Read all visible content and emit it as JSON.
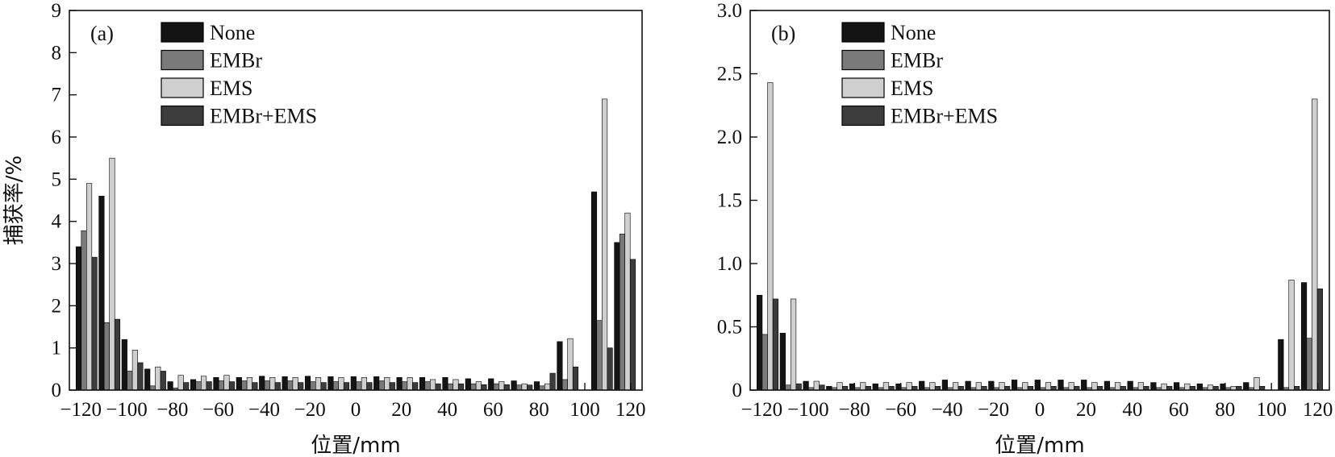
{
  "colors": {
    "None": "#141414",
    "EMBr": "#7a7a7a",
    "EMS": "#cfcfcf",
    "EMBr+EMS": "#3c3c3c",
    "axis": "#111111"
  },
  "chart_data": [
    {
      "type": "bar",
      "panel_label": "(a)",
      "xlabel": "位置/mm",
      "ylabel": "捕获率/%",
      "ylim": [
        0,
        9
      ],
      "yticks": [
        "0",
        "1",
        "2",
        "3",
        "4",
        "5",
        "6",
        "7",
        "8",
        "9"
      ],
      "xlim": [
        -125,
        125
      ],
      "xticks": [
        "−120",
        "−100",
        "−80",
        "−60",
        "−40",
        "−20",
        "0",
        "20",
        "40",
        "60",
        "80",
        "100",
        "120"
      ],
      "legend_position": "top-left",
      "x": [
        -117.5,
        -107.5,
        -97.5,
        -87.5,
        -77.5,
        -67.5,
        -57.5,
        -47.5,
        -37.5,
        -27.5,
        -17.5,
        -7.5,
        2.5,
        12.5,
        22.5,
        32.5,
        42.5,
        52.5,
        62.5,
        72.5,
        82.5,
        92.5,
        107.5,
        117.5
      ],
      "series": [
        {
          "name": "None",
          "values": [
            3.4,
            4.6,
            1.2,
            0.5,
            0.2,
            0.25,
            0.3,
            0.3,
            0.33,
            0.32,
            0.33,
            0.32,
            0.32,
            0.32,
            0.3,
            0.3,
            0.3,
            0.27,
            0.27,
            0.22,
            0.2,
            1.15,
            4.7,
            3.5
          ]
        },
        {
          "name": "EMBr",
          "values": [
            3.78,
            1.6,
            0.45,
            0.1,
            0.05,
            0.2,
            0.22,
            0.22,
            0.22,
            0.22,
            0.2,
            0.2,
            0.2,
            0.22,
            0.2,
            0.2,
            0.15,
            0.15,
            0.15,
            0.12,
            0.1,
            0.25,
            1.65,
            3.7
          ]
        },
        {
          "name": "EMS",
          "values": [
            4.9,
            5.5,
            0.95,
            0.55,
            0.35,
            0.33,
            0.35,
            0.3,
            0.3,
            0.3,
            0.3,
            0.3,
            0.3,
            0.3,
            0.3,
            0.25,
            0.25,
            0.2,
            0.2,
            0.15,
            0.15,
            1.22,
            6.9,
            4.2
          ]
        },
        {
          "name": "EMBr+EMS",
          "values": [
            3.15,
            1.68,
            0.65,
            0.45,
            0.18,
            0.2,
            0.2,
            0.18,
            0.18,
            0.18,
            0.18,
            0.18,
            0.18,
            0.18,
            0.18,
            0.15,
            0.15,
            0.13,
            0.13,
            0.12,
            0.4,
            0.55,
            1.0,
            3.1
          ]
        }
      ]
    },
    {
      "type": "bar",
      "panel_label": "(b)",
      "xlabel": "位置/mm",
      "ylabel": "",
      "ylim": [
        0,
        3.0
      ],
      "yticks": [
        "0",
        "0.5",
        "1.0",
        "1.5",
        "2.0",
        "2.5",
        "3.0"
      ],
      "xlim": [
        -125,
        125
      ],
      "xticks": [
        "−120",
        "−100",
        "−80",
        "−60",
        "−40",
        "−20",
        "0",
        "20",
        "40",
        "60",
        "80",
        "100",
        "120"
      ],
      "legend_position": "top-left",
      "x": [
        -117.5,
        -107.5,
        -97.5,
        -87.5,
        -77.5,
        -67.5,
        -57.5,
        -47.5,
        -37.5,
        -27.5,
        -17.5,
        -7.5,
        2.5,
        12.5,
        22.5,
        32.5,
        42.5,
        52.5,
        62.5,
        72.5,
        82.5,
        92.5,
        107.5,
        117.5
      ],
      "series": [
        {
          "name": "None",
          "values": [
            0.75,
            0.45,
            0.07,
            0.03,
            0.05,
            0.05,
            0.05,
            0.07,
            0.08,
            0.07,
            0.07,
            0.08,
            0.08,
            0.08,
            0.08,
            0.07,
            0.07,
            0.06,
            0.06,
            0.05,
            0.05,
            0.06,
            0.4,
            0.85
          ]
        },
        {
          "name": "EMBr",
          "values": [
            0.44,
            0.04,
            0.02,
            0.02,
            0.02,
            0.02,
            0.02,
            0.02,
            0.02,
            0.02,
            0.02,
            0.02,
            0.02,
            0.02,
            0.02,
            0.02,
            0.02,
            0.02,
            0.02,
            0.02,
            0.02,
            0.02,
            0.02,
            0.41
          ]
        },
        {
          "name": "EMS",
          "values": [
            2.43,
            0.72,
            0.07,
            0.06,
            0.06,
            0.06,
            0.06,
            0.06,
            0.06,
            0.06,
            0.06,
            0.06,
            0.06,
            0.06,
            0.06,
            0.06,
            0.06,
            0.05,
            0.05,
            0.04,
            0.03,
            0.1,
            0.87,
            2.3
          ]
        },
        {
          "name": "EMBr+EMS",
          "values": [
            0.72,
            0.05,
            0.04,
            0.03,
            0.03,
            0.03,
            0.03,
            0.03,
            0.03,
            0.03,
            0.03,
            0.03,
            0.03,
            0.03,
            0.03,
            0.03,
            0.03,
            0.03,
            0.03,
            0.03,
            0.03,
            0.03,
            0.03,
            0.8
          ]
        }
      ]
    }
  ]
}
